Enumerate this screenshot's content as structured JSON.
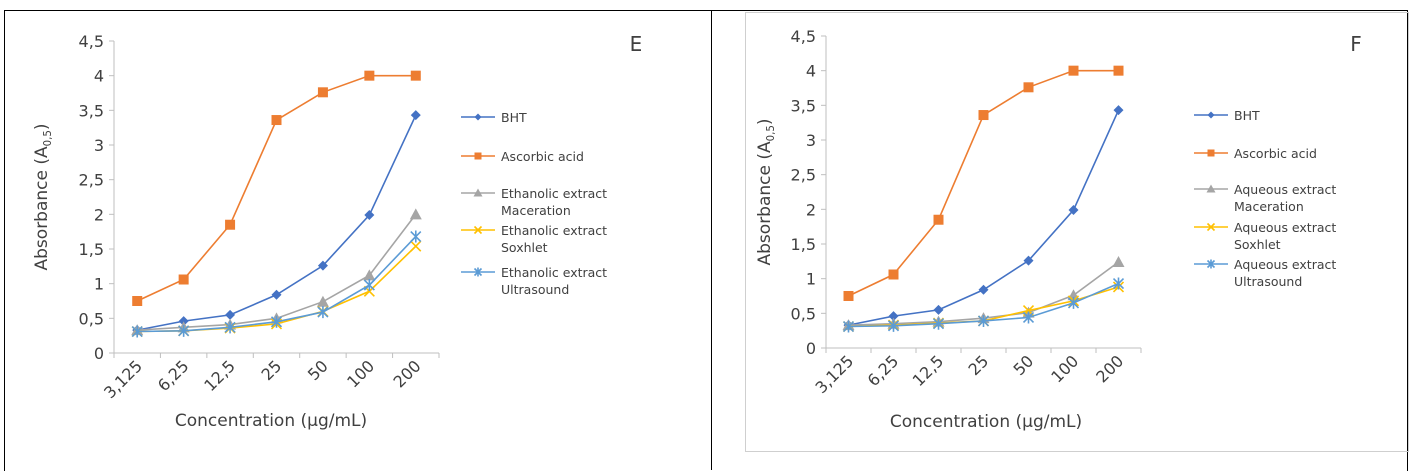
{
  "chart_data": [
    {
      "type": "line",
      "panel_label": "E",
      "xlabel": "Concentration (µg/mL)",
      "ylabel": "Absorbance (A0,5)",
      "ylabel_main": "Absorbance (A",
      "ylabel_sub": "0,5",
      "ylabel_end": ")",
      "categories": [
        "3,125",
        "6,25",
        "12,5",
        "25",
        "50",
        "100",
        "200"
      ],
      "ylim": [
        0,
        4.5
      ],
      "yticks": [
        "0",
        "0,5",
        "1",
        "1,5",
        "2",
        "2,5",
        "3",
        "3,5",
        "4",
        "4,5"
      ],
      "grid": false,
      "legend": "right",
      "series": [
        {
          "name": "BHT",
          "name_lines": [
            "BHT"
          ],
          "color": "#4472C4",
          "marker": "diamond",
          "values": [
            0.33,
            0.46,
            0.55,
            0.84,
            1.26,
            1.99,
            3.43
          ]
        },
        {
          "name": " Ascorbic acid",
          "name_lines": [
            " Ascorbic acid"
          ],
          "color": "#ED7D31",
          "marker": "square",
          "values": [
            0.75,
            1.06,
            1.85,
            3.36,
            3.76,
            4.0,
            4.0
          ]
        },
        {
          "name": "Ethanolic extract Maceration",
          "name_lines": [
            "Ethanolic extract",
            "Maceration"
          ],
          "color": "#A5A5A5",
          "marker": "triangle",
          "values": [
            0.33,
            0.37,
            0.41,
            0.5,
            0.74,
            1.12,
            2.0
          ]
        },
        {
          "name": "Ethanolic extract Soxhlet",
          "name_lines": [
            "Ethanolic extract",
            "Soxhlet"
          ],
          "color": "#FFC000",
          "marker": "x",
          "values": [
            0.31,
            0.32,
            0.36,
            0.42,
            0.6,
            0.89,
            1.54
          ]
        },
        {
          "name": "Ethanolic extract Ultrasound",
          "name_lines": [
            "Ethanolic extract",
            "Ultrasound"
          ],
          "color": "#5B9BD5",
          "marker": "star",
          "values": [
            0.31,
            0.32,
            0.37,
            0.45,
            0.59,
            0.98,
            1.68
          ]
        }
      ]
    },
    {
      "type": "line",
      "panel_label": "F",
      "xlabel": "Concentration (µg/mL)",
      "ylabel": "Absorbance (A0,5)",
      "ylabel_main": "Absorbance (A",
      "ylabel_sub": "0,5",
      "ylabel_end": ")",
      "categories": [
        "3,125",
        "6,25",
        "12,5",
        "25",
        "50",
        "100",
        "200"
      ],
      "ylim": [
        0,
        4.5
      ],
      "yticks": [
        "0",
        "0,5",
        "1",
        "1,5",
        "2",
        "2,5",
        "3",
        "3,5",
        "4",
        "4,5"
      ],
      "grid": false,
      "legend": "right",
      "series": [
        {
          "name": "BHT",
          "name_lines": [
            "BHT"
          ],
          "color": "#4472C4",
          "marker": "diamond",
          "values": [
            0.33,
            0.46,
            0.55,
            0.84,
            1.26,
            1.99,
            3.43
          ]
        },
        {
          "name": " Ascorbic acid",
          "name_lines": [
            " Ascorbic acid"
          ],
          "color": "#ED7D31",
          "marker": "square",
          "values": [
            0.75,
            1.06,
            1.85,
            3.36,
            3.76,
            4.0,
            4.0
          ]
        },
        {
          "name": "Aqueous extract Maceration",
          "name_lines": [
            "Aqueous extract",
            "Maceration"
          ],
          "color": "#A5A5A5",
          "marker": "triangle",
          "values": [
            0.33,
            0.35,
            0.38,
            0.43,
            0.51,
            0.76,
            1.24
          ]
        },
        {
          "name": "Aqueous extract Soxhlet",
          "name_lines": [
            "Aqueous extract",
            "Soxhlet"
          ],
          "color": "#FFC000",
          "marker": "x",
          "values": [
            0.31,
            0.33,
            0.36,
            0.39,
            0.54,
            0.68,
            0.88
          ]
        },
        {
          "name": "Aqueous extract Ultrasound",
          "name_lines": [
            "Aqueous extract",
            "Ultrasound"
          ],
          "color": "#5B9BD5",
          "marker": "star",
          "values": [
            0.31,
            0.32,
            0.35,
            0.39,
            0.44,
            0.65,
            0.93
          ]
        }
      ]
    }
  ]
}
